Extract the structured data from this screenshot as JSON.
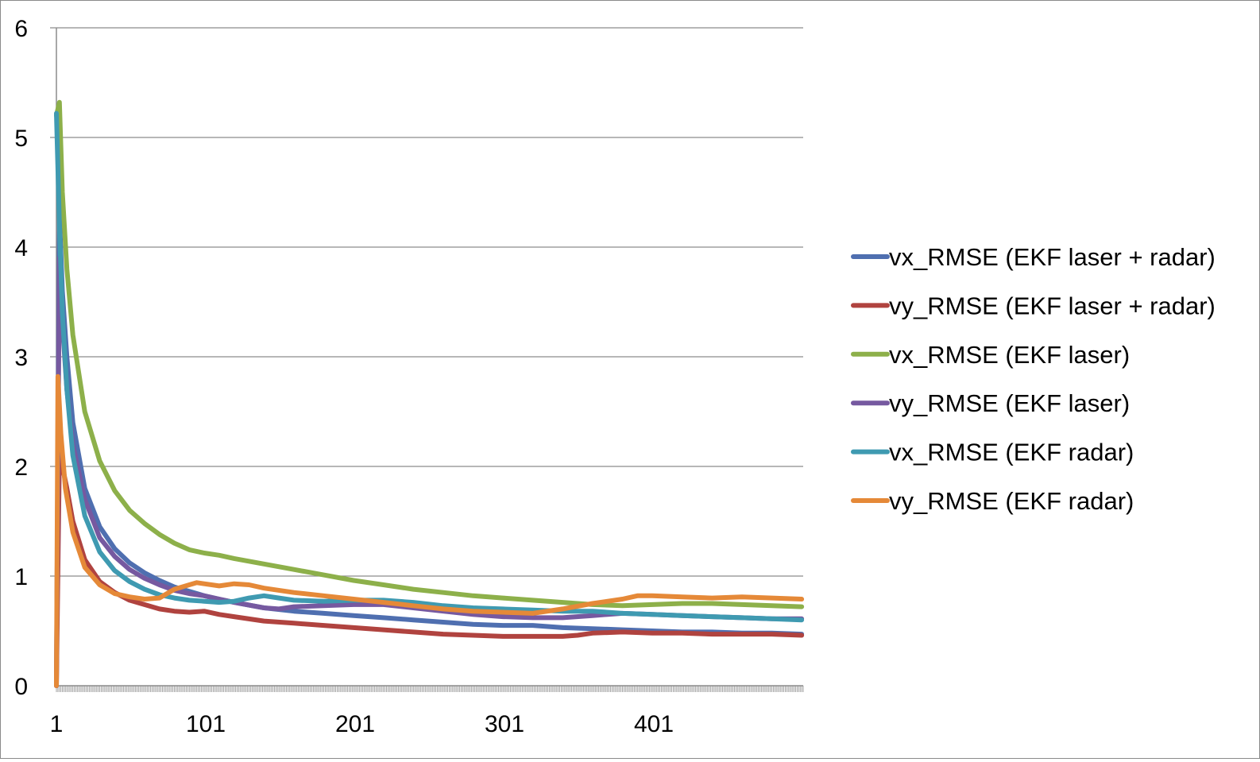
{
  "chart_data": {
    "type": "line",
    "title": "",
    "xlabel": "",
    "ylabel": "",
    "x_range": [
      1,
      501
    ],
    "ylim": [
      0,
      6
    ],
    "y_ticks": [
      "0",
      "1",
      "2",
      "3",
      "4",
      "5",
      "6"
    ],
    "x_ticks": [
      {
        "value": 1,
        "label": "1"
      },
      {
        "value": 101,
        "label": "101"
      },
      {
        "value": 201,
        "label": "201"
      },
      {
        "value": 301,
        "label": "301"
      },
      {
        "value": 401,
        "label": "401"
      }
    ],
    "grid": "horizontal",
    "legend_position": "right",
    "series": [
      {
        "name": "vx_RMSE (EKF laser + radar)",
        "color": "#4F6FB0",
        "points": [
          [
            1,
            0
          ],
          [
            3,
            4.3
          ],
          [
            5,
            3.6
          ],
          [
            8,
            3.0
          ],
          [
            12,
            2.4
          ],
          [
            20,
            1.8
          ],
          [
            30,
            1.45
          ],
          [
            40,
            1.25
          ],
          [
            50,
            1.12
          ],
          [
            60,
            1.03
          ],
          [
            70,
            0.96
          ],
          [
            80,
            0.9
          ],
          [
            90,
            0.86
          ],
          [
            100,
            0.82
          ],
          [
            110,
            0.79
          ],
          [
            120,
            0.76
          ],
          [
            140,
            0.71
          ],
          [
            160,
            0.68
          ],
          [
            180,
            0.66
          ],
          [
            200,
            0.64
          ],
          [
            220,
            0.62
          ],
          [
            240,
            0.6
          ],
          [
            260,
            0.58
          ],
          [
            280,
            0.56
          ],
          [
            300,
            0.55
          ],
          [
            320,
            0.55
          ],
          [
            340,
            0.53
          ],
          [
            360,
            0.52
          ],
          [
            380,
            0.51
          ],
          [
            400,
            0.5
          ],
          [
            420,
            0.49
          ],
          [
            440,
            0.49
          ],
          [
            460,
            0.48
          ],
          [
            480,
            0.48
          ],
          [
            500,
            0.47
          ]
        ]
      },
      {
        "name": "vy_RMSE (EKF laser + radar)",
        "color": "#B0433F",
        "points": [
          [
            1,
            0
          ],
          [
            3,
            2.1
          ],
          [
            5,
            2.0
          ],
          [
            8,
            1.8
          ],
          [
            12,
            1.5
          ],
          [
            20,
            1.15
          ],
          [
            30,
            0.95
          ],
          [
            40,
            0.85
          ],
          [
            50,
            0.78
          ],
          [
            60,
            0.74
          ],
          [
            70,
            0.7
          ],
          [
            80,
            0.68
          ],
          [
            90,
            0.67
          ],
          [
            100,
            0.68
          ],
          [
            110,
            0.65
          ],
          [
            120,
            0.63
          ],
          [
            140,
            0.59
          ],
          [
            160,
            0.57
          ],
          [
            180,
            0.55
          ],
          [
            200,
            0.53
          ],
          [
            220,
            0.51
          ],
          [
            240,
            0.49
          ],
          [
            260,
            0.47
          ],
          [
            280,
            0.46
          ],
          [
            300,
            0.45
          ],
          [
            320,
            0.45
          ],
          [
            340,
            0.45
          ],
          [
            350,
            0.46
          ],
          [
            360,
            0.48
          ],
          [
            380,
            0.49
          ],
          [
            400,
            0.48
          ],
          [
            420,
            0.48
          ],
          [
            440,
            0.47
          ],
          [
            460,
            0.47
          ],
          [
            480,
            0.47
          ],
          [
            500,
            0.46
          ]
        ]
      },
      {
        "name": "vx_RMSE (EKF laser)",
        "color": "#8DB04A",
        "points": [
          [
            1,
            5.2
          ],
          [
            3,
            5.32
          ],
          [
            5,
            4.5
          ],
          [
            8,
            3.8
          ],
          [
            12,
            3.2
          ],
          [
            20,
            2.5
          ],
          [
            30,
            2.05
          ],
          [
            40,
            1.78
          ],
          [
            50,
            1.6
          ],
          [
            60,
            1.48
          ],
          [
            70,
            1.38
          ],
          [
            80,
            1.3
          ],
          [
            90,
            1.24
          ],
          [
            100,
            1.21
          ],
          [
            110,
            1.19
          ],
          [
            120,
            1.16
          ],
          [
            140,
            1.11
          ],
          [
            160,
            1.06
          ],
          [
            180,
            1.01
          ],
          [
            200,
            0.96
          ],
          [
            220,
            0.92
          ],
          [
            240,
            0.88
          ],
          [
            260,
            0.85
          ],
          [
            280,
            0.82
          ],
          [
            300,
            0.8
          ],
          [
            320,
            0.78
          ],
          [
            340,
            0.76
          ],
          [
            360,
            0.74
          ],
          [
            380,
            0.73
          ],
          [
            400,
            0.74
          ],
          [
            420,
            0.75
          ],
          [
            440,
            0.75
          ],
          [
            460,
            0.74
          ],
          [
            480,
            0.73
          ],
          [
            500,
            0.72
          ]
        ]
      },
      {
        "name": "vy_RMSE (EKF laser)",
        "color": "#7659A0",
        "points": [
          [
            1,
            0
          ],
          [
            3,
            3.9
          ],
          [
            5,
            3.3
          ],
          [
            8,
            2.7
          ],
          [
            12,
            2.2
          ],
          [
            20,
            1.7
          ],
          [
            30,
            1.35
          ],
          [
            40,
            1.18
          ],
          [
            50,
            1.06
          ],
          [
            60,
            0.98
          ],
          [
            70,
            0.92
          ],
          [
            80,
            0.87
          ],
          [
            90,
            0.84
          ],
          [
            100,
            0.82
          ],
          [
            110,
            0.79
          ],
          [
            120,
            0.76
          ],
          [
            140,
            0.71
          ],
          [
            150,
            0.7
          ],
          [
            160,
            0.72
          ],
          [
            180,
            0.73
          ],
          [
            200,
            0.74
          ],
          [
            220,
            0.74
          ],
          [
            240,
            0.71
          ],
          [
            260,
            0.68
          ],
          [
            280,
            0.65
          ],
          [
            300,
            0.63
          ],
          [
            320,
            0.62
          ],
          [
            340,
            0.62
          ],
          [
            360,
            0.64
          ],
          [
            380,
            0.66
          ],
          [
            400,
            0.65
          ],
          [
            420,
            0.64
          ],
          [
            440,
            0.63
          ],
          [
            460,
            0.62
          ],
          [
            480,
            0.61
          ],
          [
            500,
            0.61
          ]
        ]
      },
      {
        "name": "vx_RMSE (EKF radar)",
        "color": "#3F9AB1",
        "points": [
          [
            1,
            5.22
          ],
          [
            3,
            4.2
          ],
          [
            5,
            3.4
          ],
          [
            8,
            2.7
          ],
          [
            12,
            2.1
          ],
          [
            20,
            1.55
          ],
          [
            30,
            1.22
          ],
          [
            40,
            1.05
          ],
          [
            50,
            0.95
          ],
          [
            60,
            0.88
          ],
          [
            70,
            0.83
          ],
          [
            80,
            0.8
          ],
          [
            90,
            0.78
          ],
          [
            100,
            0.77
          ],
          [
            110,
            0.76
          ],
          [
            120,
            0.77
          ],
          [
            130,
            0.8
          ],
          [
            140,
            0.82
          ],
          [
            150,
            0.8
          ],
          [
            160,
            0.78
          ],
          [
            180,
            0.77
          ],
          [
            200,
            0.78
          ],
          [
            220,
            0.78
          ],
          [
            240,
            0.76
          ],
          [
            260,
            0.73
          ],
          [
            280,
            0.71
          ],
          [
            300,
            0.7
          ],
          [
            320,
            0.69
          ],
          [
            340,
            0.68
          ],
          [
            360,
            0.68
          ],
          [
            380,
            0.66
          ],
          [
            400,
            0.65
          ],
          [
            420,
            0.64
          ],
          [
            440,
            0.63
          ],
          [
            460,
            0.62
          ],
          [
            480,
            0.61
          ],
          [
            500,
            0.6
          ]
        ]
      },
      {
        "name": "vy_RMSE (EKF radar)",
        "color": "#E58938",
        "points": [
          [
            1,
            0
          ],
          [
            2,
            2.82
          ],
          [
            4,
            2.3
          ],
          [
            7,
            1.8
          ],
          [
            12,
            1.4
          ],
          [
            20,
            1.08
          ],
          [
            30,
            0.92
          ],
          [
            40,
            0.84
          ],
          [
            50,
            0.81
          ],
          [
            60,
            0.79
          ],
          [
            70,
            0.8
          ],
          [
            80,
            0.88
          ],
          [
            90,
            0.92
          ],
          [
            95,
            0.94
          ],
          [
            100,
            0.93
          ],
          [
            110,
            0.91
          ],
          [
            120,
            0.93
          ],
          [
            130,
            0.92
          ],
          [
            140,
            0.89
          ],
          [
            160,
            0.85
          ],
          [
            180,
            0.82
          ],
          [
            200,
            0.79
          ],
          [
            220,
            0.76
          ],
          [
            240,
            0.73
          ],
          [
            260,
            0.7
          ],
          [
            280,
            0.68
          ],
          [
            300,
            0.67
          ],
          [
            320,
            0.66
          ],
          [
            340,
            0.7
          ],
          [
            360,
            0.75
          ],
          [
            380,
            0.79
          ],
          [
            390,
            0.82
          ],
          [
            400,
            0.82
          ],
          [
            420,
            0.81
          ],
          [
            440,
            0.8
          ],
          [
            460,
            0.81
          ],
          [
            480,
            0.8
          ],
          [
            500,
            0.79
          ]
        ]
      }
    ]
  }
}
